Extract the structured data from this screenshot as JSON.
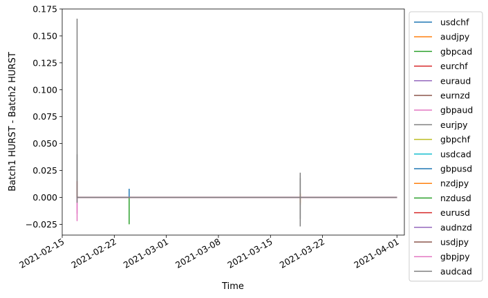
{
  "chart_data": {
    "type": "line",
    "title": "",
    "xlabel": "Time",
    "ylabel": "Batch1 HURST - Batch2 HURST",
    "x_range": [
      "2021-02-15",
      "2021-04-02"
    ],
    "ylim": [
      -0.035,
      0.175
    ],
    "x_ticks": [
      "2021-02-15",
      "2021-02-22",
      "2021-03-01",
      "2021-03-08",
      "2021-03-15",
      "2021-03-22",
      "2021-04-01"
    ],
    "y_ticks": [
      "−0.025",
      "0.000",
      "0.025",
      "0.050",
      "0.075",
      "0.100",
      "0.125",
      "0.150",
      "0.175"
    ],
    "grid": false,
    "legend_position": "outside-right",
    "colors": [
      "#1f77b4",
      "#ff7f0e",
      "#2ca02c",
      "#d62728",
      "#9467bd",
      "#8c564b",
      "#e377c2",
      "#7f7f7f",
      "#bcbd22",
      "#17becf"
    ],
    "series": [
      {
        "name": "usdchf",
        "points": [
          [
            "2021-02-17",
            0
          ],
          [
            "2021-03-19",
            0
          ],
          [
            "2021-04-01",
            0
          ]
        ]
      },
      {
        "name": "audjpy",
        "points": [
          [
            "2021-02-17",
            0
          ],
          [
            "2021-03-19",
            0
          ],
          [
            "2021-03-19",
            0.004
          ],
          [
            "2021-03-19",
            -0.007
          ],
          [
            "2021-03-19",
            0
          ],
          [
            "2021-04-01",
            0
          ]
        ]
      },
      {
        "name": "gbpcad",
        "points": [
          [
            "2021-02-17",
            0
          ],
          [
            "2021-02-24",
            0
          ],
          [
            "2021-02-24",
            -0.025
          ],
          [
            "2021-02-24",
            0
          ],
          [
            "2021-04-01",
            0
          ]
        ]
      },
      {
        "name": "eurchf",
        "points": [
          [
            "2021-02-17",
            0
          ],
          [
            "2021-04-01",
            0
          ]
        ]
      },
      {
        "name": "euraud",
        "points": [
          [
            "2021-02-17",
            0
          ],
          [
            "2021-04-01",
            0
          ]
        ]
      },
      {
        "name": "eurnzd",
        "points": [
          [
            "2021-02-17",
            0
          ],
          [
            "2021-04-01",
            0
          ]
        ]
      },
      {
        "name": "gbpaud",
        "points": [
          [
            "2021-02-17",
            0
          ],
          [
            "2021-02-17",
            -0.022
          ],
          [
            "2021-02-17",
            0
          ],
          [
            "2021-04-01",
            0
          ]
        ]
      },
      {
        "name": "eurjpy",
        "points": [
          [
            "2021-02-17",
            0
          ],
          [
            "2021-02-17",
            0.04
          ],
          [
            "2021-02-17",
            0
          ],
          [
            "2021-03-19",
            0
          ],
          [
            "2021-03-19",
            0.018
          ],
          [
            "2021-03-19",
            -0.02
          ],
          [
            "2021-03-19",
            0
          ],
          [
            "2021-04-01",
            0
          ]
        ]
      },
      {
        "name": "gbpchf",
        "points": [
          [
            "2021-02-17",
            0
          ],
          [
            "2021-04-01",
            0
          ]
        ]
      },
      {
        "name": "usdcad",
        "points": [
          [
            "2021-02-17",
            0
          ],
          [
            "2021-04-01",
            0
          ]
        ]
      },
      {
        "name": "gbpusd",
        "points": [
          [
            "2021-02-17",
            0
          ],
          [
            "2021-02-24",
            0
          ],
          [
            "2021-02-24",
            0.008
          ],
          [
            "2021-02-24",
            0
          ],
          [
            "2021-04-01",
            0
          ]
        ]
      },
      {
        "name": "nzdjpy",
        "points": [
          [
            "2021-02-17",
            0
          ],
          [
            "2021-03-19",
            0
          ],
          [
            "2021-03-19",
            0.003
          ],
          [
            "2021-03-19",
            -0.005
          ],
          [
            "2021-03-19",
            0
          ],
          [
            "2021-04-01",
            0
          ]
        ]
      },
      {
        "name": "nzdusd",
        "points": [
          [
            "2021-02-17",
            0
          ],
          [
            "2021-04-01",
            0
          ]
        ]
      },
      {
        "name": "eurusd",
        "points": [
          [
            "2021-02-17",
            0
          ],
          [
            "2021-02-17",
            0.015
          ],
          [
            "2021-02-17",
            0
          ],
          [
            "2021-04-01",
            0
          ]
        ]
      },
      {
        "name": "audnzd",
        "points": [
          [
            "2021-02-17",
            0
          ],
          [
            "2021-04-01",
            0
          ]
        ]
      },
      {
        "name": "usdjpy",
        "points": [
          [
            "2021-02-17",
            0
          ],
          [
            "2021-04-01",
            0
          ]
        ]
      },
      {
        "name": "gbpjpy",
        "points": [
          [
            "2021-02-17",
            0
          ],
          [
            "2021-02-17",
            -0.015
          ],
          [
            "2021-02-17",
            0
          ],
          [
            "2021-04-01",
            0
          ]
        ]
      },
      {
        "name": "audcad",
        "points": [
          [
            "2021-02-17",
            0
          ],
          [
            "2021-02-17",
            0.166
          ],
          [
            "2021-02-17",
            -0.005
          ],
          [
            "2021-02-17",
            0
          ],
          [
            "2021-03-19",
            0
          ],
          [
            "2021-03-19",
            0.023
          ],
          [
            "2021-03-19",
            -0.027
          ],
          [
            "2021-03-19",
            0.022
          ],
          [
            "2021-03-19",
            0
          ],
          [
            "2021-04-01",
            0
          ]
        ]
      }
    ]
  }
}
